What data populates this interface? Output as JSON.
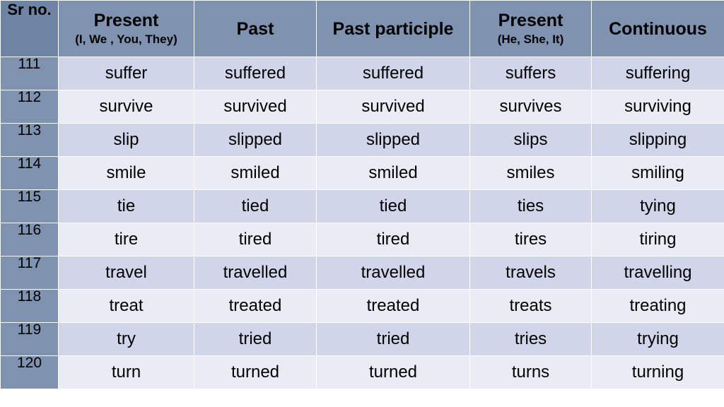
{
  "headers": {
    "sr_no": "Sr no.",
    "present": {
      "label": "Present",
      "sub": "(I, We , You, They)"
    },
    "past": "Past",
    "past_participle": "Past participle",
    "present_third": {
      "label": "Present",
      "sub": "(He, She, It)"
    },
    "continuous": "Continuous"
  },
  "rows": [
    {
      "sr": "111",
      "present": "suffer",
      "past": "suffered",
      "past_participle": "suffered",
      "present_third": "suffers",
      "continuous": "suffering"
    },
    {
      "sr": "112",
      "present": "survive",
      "past": "survived",
      "past_participle": "survived",
      "present_third": "survives",
      "continuous": "surviving"
    },
    {
      "sr": "113",
      "present": "slip",
      "past": "slipped",
      "past_participle": "slipped",
      "present_third": "slips",
      "continuous": "slipping"
    },
    {
      "sr": "114",
      "present": "smile",
      "past": "smiled",
      "past_participle": "smiled",
      "present_third": "smiles",
      "continuous": "smiling"
    },
    {
      "sr": "115",
      "present": "tie",
      "past": "tied",
      "past_participle": "tied",
      "present_third": "ties",
      "continuous": "tying"
    },
    {
      "sr": "116",
      "present": "tire",
      "past": "tired",
      "past_participle": "tired",
      "present_third": "tires",
      "continuous": "tiring"
    },
    {
      "sr": "117",
      "present": "travel",
      "past": "travelled",
      "past_participle": "travelled",
      "present_third": "travels",
      "continuous": "travelling"
    },
    {
      "sr": "118",
      "present": "treat",
      "past": "treated",
      "past_participle": "treated",
      "present_third": "treats",
      "continuous": "treating"
    },
    {
      "sr": "119",
      "present": "try",
      "past": "tried",
      "past_participle": "tried",
      "present_third": "tries",
      "continuous": "trying"
    },
    {
      "sr": "120",
      "present": "turn",
      "past": "turned",
      "past_participle": "turned",
      "present_third": "turns",
      "continuous": "turning"
    }
  ],
  "colors": {
    "header_bg": "#7f93b1",
    "row_odd_bg": "#d0d5ea",
    "row_even_bg": "#e9ebf5"
  }
}
